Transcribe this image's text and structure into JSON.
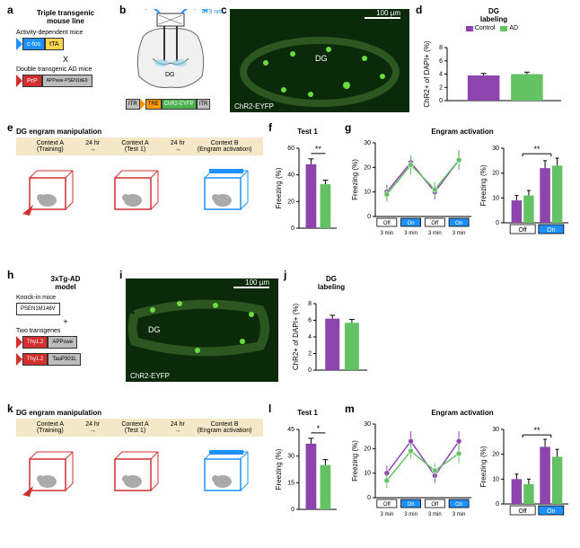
{
  "colors": {
    "control": "#8e44ad",
    "ad": "#64c264",
    "black": "#000000",
    "white": "#ffffff",
    "blue": "#1e90ff",
    "red": "#d32f2f",
    "yellow": "#ffd54f",
    "orange": "#ff9800",
    "green_dark": "#4caf50",
    "gray_box": "#bdbdbd",
    "cream": "#f5e8c8",
    "dg_bg": "#0a2a0a"
  },
  "a": {
    "title": "Triple transgenic\nmouse line",
    "line1_label": "Activity-dependent mice",
    "cfos": "c-fos",
    "tta": "tTA",
    "cross": "X",
    "line2_label": "Double transgenic AD mice",
    "prp": "PrP",
    "app": "APPswe-PSEN1dE9"
  },
  "b": {
    "laser_wavelength": "473 nm",
    "dg_label": "DG",
    "itr1": "ITR",
    "tre": "TRE",
    "chr2": "ChR2-EYFP",
    "itr2": "ITR"
  },
  "c": {
    "scale": "100 µm",
    "dg_label": "DG",
    "caption": "ChR2-EYFP"
  },
  "d": {
    "title": "DG\nlabeling",
    "ylabel": "ChR2+ of DAPI+ (%)",
    "legend_ctrl": "Control",
    "legend_ad": "AD",
    "ylim": [
      0,
      8
    ],
    "yticks": [
      0,
      2,
      4,
      6,
      8
    ],
    "bars": {
      "control": 3.8,
      "ad": 4.0
    },
    "err": {
      "control": 0.3,
      "ad": 0.3
    }
  },
  "e": {
    "title": "DG engram manipulation",
    "ctx_a_train": "Context A\n(Training)",
    "interval": "24 hr",
    "ctx_a_test": "Context A\n(Test 1)",
    "ctx_b": "Context B\n(Engram activation)"
  },
  "f": {
    "title": "Test 1",
    "ylabel": "Freezing (%)",
    "ylim": [
      0,
      60
    ],
    "yticks": [
      0,
      20,
      40,
      60
    ],
    "bars": {
      "control": 48,
      "ad": 33
    },
    "err": {
      "control": 4,
      "ad": 3
    },
    "sig": "**"
  },
  "g": {
    "title": "Engram activation",
    "ylabel": "Freezing (%)",
    "line_ylim": [
      0,
      30
    ],
    "line_yticks": [
      0,
      10,
      20,
      30
    ],
    "xlabels": [
      "Off",
      "On",
      "Off",
      "On"
    ],
    "xsub": "3 min",
    "control_line": [
      10,
      22,
      10,
      23
    ],
    "ad_line": [
      9,
      21,
      11,
      23
    ],
    "control_err": [
      3,
      3,
      3,
      4
    ],
    "ad_err": [
      3,
      4,
      3,
      4
    ],
    "bar_ylim": [
      0,
      30
    ],
    "bar_yticks": [
      0,
      10,
      20,
      30
    ],
    "bars_off": {
      "control": 9,
      "ad": 11
    },
    "bars_on": {
      "control": 22,
      "ad": 23
    },
    "bars_err": {
      "off_c": 2,
      "off_a": 2,
      "on_c": 3,
      "on_a": 3
    },
    "bar_x": [
      "Off",
      "On"
    ],
    "sig": "**"
  },
  "h": {
    "title": "3xTg-AD\nmodel",
    "ki_label": "Knock-in mice",
    "psen": "PSEN1M146V",
    "plus": "+",
    "tg_label": "Two transgenes",
    "thy1": "Thy1.2",
    "app": "APPswe",
    "tau": "TauP301L"
  },
  "i": {
    "scale": "100 µm",
    "dg_label": "DG",
    "caption": "ChR2-EYFP"
  },
  "j": {
    "title": "DG\nlabeling",
    "ylabel": "ChR2+ of DAPI+ (%)",
    "ylim": [
      0,
      8
    ],
    "yticks": [
      0,
      2,
      4,
      6,
      8
    ],
    "bars": {
      "control": 6.2,
      "ad": 5.7
    },
    "err": {
      "control": 0.4,
      "ad": 0.4
    }
  },
  "k": {
    "title": "DG engram manipulation",
    "ctx_a_train": "Context A\n(Training)",
    "interval": "24 hr",
    "ctx_a_test": "Context A\n(Test 1)",
    "ctx_b": "Context B\n(Engram activation)"
  },
  "l": {
    "title": "Test 1",
    "ylabel": "Freezing (%)",
    "ylim": [
      0,
      45
    ],
    "yticks": [
      0,
      15,
      30,
      45
    ],
    "bars": {
      "control": 37,
      "ad": 25
    },
    "err": {
      "control": 3,
      "ad": 3
    },
    "sig": "*"
  },
  "m": {
    "title": "Engram activation",
    "ylabel": "Freezing (%)",
    "line_ylim": [
      0,
      30
    ],
    "line_yticks": [
      0,
      10,
      20,
      30
    ],
    "xlabels": [
      "Off",
      "On",
      "Off",
      "On"
    ],
    "xsub": "3 min",
    "control_line": [
      10,
      23,
      9,
      23
    ],
    "ad_line": [
      7,
      19,
      11,
      18
    ],
    "control_err": [
      3,
      4,
      3,
      4
    ],
    "ad_err": [
      3,
      3,
      3,
      4
    ],
    "bar_ylim": [
      0,
      30
    ],
    "bar_yticks": [
      0,
      10,
      20,
      30
    ],
    "bars_off": {
      "control": 10,
      "ad": 8
    },
    "bars_on": {
      "control": 23,
      "ad": 19
    },
    "bars_err": {
      "off_c": 2,
      "off_a": 2,
      "on_c": 3,
      "on_a": 3
    },
    "bar_x": [
      "Off",
      "On"
    ],
    "sig": "**"
  }
}
